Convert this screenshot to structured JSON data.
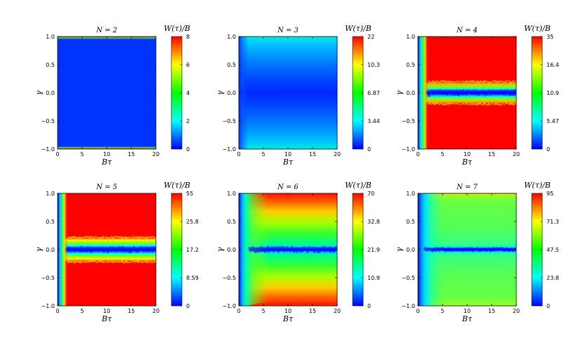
{
  "figure": {
    "x_range": [
      0,
      20
    ],
    "y_range": [
      -1,
      1
    ],
    "x_ticks": [
      "0",
      "5",
      "10",
      "15",
      "20"
    ],
    "y_ticks": [
      "1.0",
      "0.5",
      "0.0",
      "−0.5",
      "−1.0"
    ],
    "x_label": "Bτ",
    "y_label": "γ",
    "colorbar_label": "W(τ)/B",
    "colormap": [
      "#0000ff",
      "#00ffff",
      "#00ff00",
      "#ffff00",
      "#ff0000"
    ]
  },
  "chart_data": [
    {
      "type": "heatmap",
      "title": "N = 2",
      "colorbar_ticks": [
        "8",
        "6",
        "4",
        "2",
        "0"
      ],
      "colorbar_range": [
        0,
        8
      ]
    },
    {
      "type": "heatmap",
      "title": "N = 3",
      "colorbar_ticks": [
        "22",
        "10.3",
        "6.87",
        "3.44",
        "0"
      ],
      "colorbar_range": [
        0,
        22
      ]
    },
    {
      "type": "heatmap",
      "title": "N = 4",
      "colorbar_ticks": [
        "35",
        "16.4",
        "10.9",
        "5.47",
        "0"
      ],
      "colorbar_range": [
        0,
        35
      ]
    },
    {
      "type": "heatmap",
      "title": "N = 5",
      "colorbar_ticks": [
        "55",
        "25.8",
        "17.2",
        "8.59",
        "0"
      ],
      "colorbar_range": [
        0,
        55
      ]
    },
    {
      "type": "heatmap",
      "title": "N = 6",
      "colorbar_ticks": [
        "70",
        "32.8",
        "21.9",
        "10.9",
        "0"
      ],
      "colorbar_range": [
        0,
        70
      ]
    },
    {
      "type": "heatmap",
      "title": "N = 7",
      "colorbar_ticks": [
        "95",
        "71.3",
        "47.5",
        "23.8",
        "0"
      ],
      "colorbar_range": [
        0,
        95
      ]
    }
  ]
}
